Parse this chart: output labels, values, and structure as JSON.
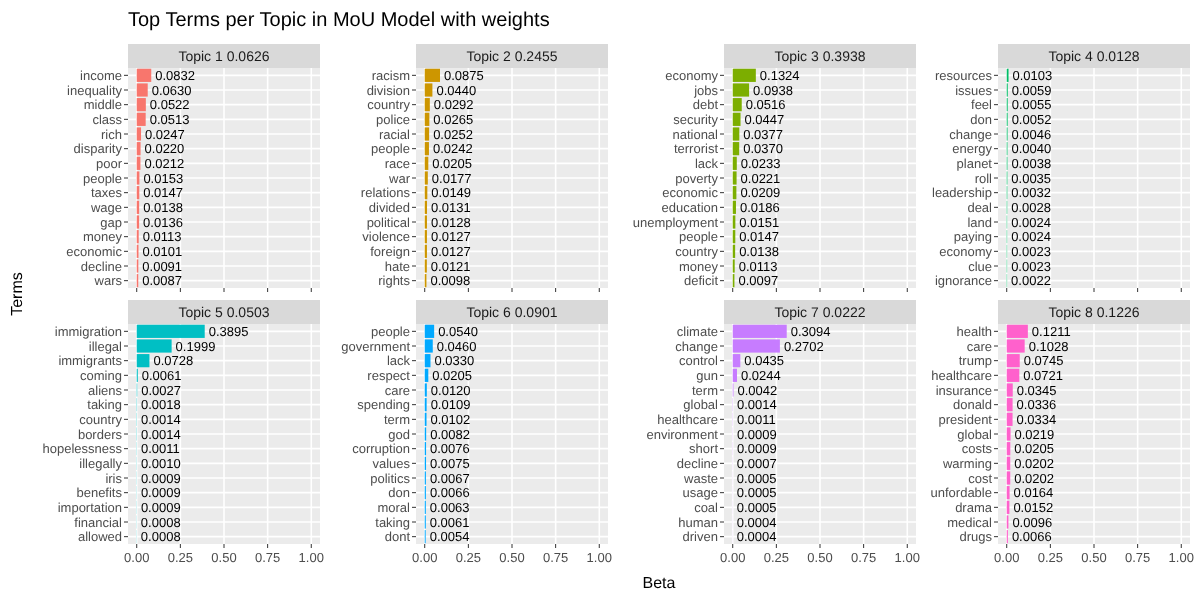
{
  "chart_data": [
    {
      "type": "bar",
      "orientation": "horizontal",
      "title": "Topic 1 0.0626",
      "annotations": [
        "Top Terms per Topic in MoU Model with weights"
      ],
      "ylabel": "Terms",
      "color": "#f8766d",
      "grid": true,
      "tick_labels": "y",
      "xlim": [
        -0.05,
        1.05
      ],
      "xticks": [
        {
          "value": 0,
          "label": null
        },
        {
          "value": 0.25,
          "label": null
        },
        {
          "value": 0.5,
          "label": null
        },
        {
          "value": 0.75,
          "label": null
        },
        {
          "value": 1,
          "label": null
        }
      ],
      "categories": [
        "income",
        "inequality",
        "middle",
        "class",
        "rich",
        "disparity",
        "poor",
        "people",
        "taxes",
        "wage",
        "gap",
        "money",
        "economic",
        "decline",
        "wars"
      ],
      "values": [
        0.0832,
        0.063,
        0.0522,
        0.0513,
        0.0247,
        0.022,
        0.0212,
        0.0153,
        0.0147,
        0.0138,
        0.0136,
        0.0113,
        0.0101,
        0.0091,
        0.0087
      ],
      "value_labels": [
        "0.0832",
        "0.0630",
        "0.0522",
        "0.0513",
        "0.0247",
        "0.0220",
        "0.0212",
        "0.0153",
        "0.0147",
        "0.0138",
        "0.0136",
        "0.0113",
        "0.0101",
        "0.0091",
        "0.0087"
      ]
    },
    {
      "type": "bar",
      "orientation": "horizontal",
      "title": "Topic 2 0.2455",
      "color": "#cd9600",
      "grid": true,
      "tick_labels": "y",
      "xlim": [
        -0.05,
        1.05
      ],
      "xticks": [
        {
          "value": 0,
          "label": null
        },
        {
          "value": 0.25,
          "label": null
        },
        {
          "value": 0.5,
          "label": null
        },
        {
          "value": 0.75,
          "label": null
        },
        {
          "value": 1,
          "label": null
        }
      ],
      "categories": [
        "racism",
        "division",
        "country",
        "police",
        "racial",
        "people",
        "race",
        "war",
        "relations",
        "divided",
        "political",
        "violence",
        "foreign",
        "hate",
        "rights"
      ],
      "values": [
        0.0875,
        0.044,
        0.0292,
        0.0265,
        0.0252,
        0.0242,
        0.0205,
        0.0177,
        0.0149,
        0.0131,
        0.0128,
        0.0127,
        0.0127,
        0.0121,
        0.0098
      ],
      "value_labels": [
        "0.0875",
        "0.0440",
        "0.0292",
        "0.0265",
        "0.0252",
        "0.0242",
        "0.0205",
        "0.0177",
        "0.0149",
        "0.0131",
        "0.0128",
        "0.0127",
        "0.0127",
        "0.0121",
        "0.0098"
      ]
    },
    {
      "type": "bar",
      "orientation": "horizontal",
      "title": "Topic 3 0.3938",
      "color": "#7cae00",
      "grid": true,
      "tick_labels": "y",
      "xlim": [
        -0.05,
        1.05
      ],
      "xticks": [
        {
          "value": 0,
          "label": null
        },
        {
          "value": 0.25,
          "label": null
        },
        {
          "value": 0.5,
          "label": null
        },
        {
          "value": 0.75,
          "label": null
        },
        {
          "value": 1,
          "label": null
        }
      ],
      "categories": [
        "economy",
        "jobs",
        "debt",
        "security",
        "national",
        "terrorist",
        "lack",
        "poverty",
        "economic",
        "education",
        "unemployment",
        "people",
        "country",
        "money",
        "deficit"
      ],
      "values": [
        0.1324,
        0.0938,
        0.0516,
        0.0447,
        0.0377,
        0.037,
        0.0233,
        0.0221,
        0.0209,
        0.0186,
        0.0151,
        0.0147,
        0.0138,
        0.0113,
        0.0097
      ],
      "value_labels": [
        "0.1324",
        "0.0938",
        "0.0516",
        "0.0447",
        "0.0377",
        "0.0370",
        "0.0233",
        "0.0221",
        "0.0209",
        "0.0186",
        "0.0151",
        "0.0147",
        "0.0138",
        "0.0113",
        "0.0097"
      ]
    },
    {
      "type": "bar",
      "orientation": "horizontal",
      "title": "Topic 4 0.0128",
      "color": "#00be67",
      "grid": true,
      "tick_labels": "y",
      "xlim": [
        -0.05,
        1.05
      ],
      "xticks": [
        {
          "value": 0,
          "label": null
        },
        {
          "value": 0.25,
          "label": null
        },
        {
          "value": 0.5,
          "label": null
        },
        {
          "value": 0.75,
          "label": null
        },
        {
          "value": 1,
          "label": null
        }
      ],
      "categories": [
        "resources",
        "issues",
        "feel",
        "don",
        "change",
        "energy",
        "planet",
        "roll",
        "leadership",
        "deal",
        "land",
        "paying",
        "economy",
        "clue",
        "ignorance"
      ],
      "values": [
        0.0103,
        0.0059,
        0.0055,
        0.0052,
        0.0046,
        0.004,
        0.0038,
        0.0035,
        0.0032,
        0.0028,
        0.0024,
        0.0024,
        0.0023,
        0.0023,
        0.0022
      ],
      "value_labels": [
        "0.0103",
        "0.0059",
        "0.0055",
        "0.0052",
        "0.0046",
        "0.0040",
        "0.0038",
        "0.0035",
        "0.0032",
        "0.0028",
        "0.0024",
        "0.0024",
        "0.0023",
        "0.0023",
        "0.0022"
      ]
    },
    {
      "type": "bar",
      "orientation": "horizontal",
      "title": "Topic 5 0.0503",
      "color": "#00bfc4",
      "grid": true,
      "xlim": [
        -0.05,
        1.05
      ],
      "xticks": [
        {
          "value": 0,
          "label": "0.00"
        },
        {
          "value": 0.25,
          "label": "0.25"
        },
        {
          "value": 0.5,
          "label": "0.50"
        },
        {
          "value": 0.75,
          "label": "0.75"
        },
        {
          "value": 1,
          "label": "1.00"
        }
      ],
      "categories": [
        "immigration",
        "illegal",
        "immigrants",
        "coming",
        "aliens",
        "taking",
        "country",
        "borders",
        "hopelessness",
        "illegally",
        "iris",
        "benefits",
        "importation",
        "financial",
        "allowed"
      ],
      "values": [
        0.3895,
        0.1999,
        0.0728,
        0.0061,
        0.0027,
        0.0018,
        0.0014,
        0.0014,
        0.0011,
        0.001,
        0.0009,
        0.0009,
        0.0009,
        0.0008,
        0.0008
      ],
      "value_labels": [
        "0.3895",
        "0.1999",
        "0.0728",
        "0.0061",
        "0.0027",
        "0.0018",
        "0.0014",
        "0.0014",
        "0.0011",
        "0.0010",
        "0.0009",
        "0.0009",
        "0.0009",
        "0.0008",
        "0.0008"
      ]
    },
    {
      "type": "bar",
      "orientation": "horizontal",
      "title": "Topic 6 0.0901",
      "color": "#00a9ff",
      "grid": true,
      "xlim": [
        -0.05,
        1.05
      ],
      "xticks": [
        {
          "value": 0,
          "label": "0.00"
        },
        {
          "value": 0.25,
          "label": "0.25"
        },
        {
          "value": 0.5,
          "label": "0.50"
        },
        {
          "value": 0.75,
          "label": "0.75"
        },
        {
          "value": 1,
          "label": "1.00"
        }
      ],
      "categories": [
        "people",
        "government",
        "lack",
        "respect",
        "care",
        "spending",
        "term",
        "god",
        "corruption",
        "values",
        "politics",
        "don",
        "moral",
        "taking",
        "dont"
      ],
      "values": [
        0.054,
        0.046,
        0.033,
        0.0205,
        0.012,
        0.0109,
        0.0102,
        0.0082,
        0.0076,
        0.0075,
        0.0067,
        0.0066,
        0.0063,
        0.0061,
        0.0054
      ],
      "value_labels": [
        "0.0540",
        "0.0460",
        "0.0330",
        "0.0205",
        "0.0120",
        "0.0109",
        "0.0102",
        "0.0082",
        "0.0076",
        "0.0075",
        "0.0067",
        "0.0066",
        "0.0063",
        "0.0061",
        "0.0054"
      ]
    },
    {
      "type": "bar",
      "orientation": "horizontal",
      "title": "Topic 7 0.0222",
      "xlabel": "Beta",
      "color": "#c77cff",
      "grid": true,
      "xlim": [
        -0.05,
        1.05
      ],
      "xticks": [
        {
          "value": 0,
          "label": "0.00"
        },
        {
          "value": 0.25,
          "label": "0.25"
        },
        {
          "value": 0.5,
          "label": "0.50"
        },
        {
          "value": 0.75,
          "label": "0.75"
        },
        {
          "value": 1,
          "label": "1.00"
        }
      ],
      "categories": [
        "climate",
        "change",
        "control",
        "gun",
        "term",
        "global",
        "healthcare",
        "environment",
        "short",
        "decline",
        "waste",
        "usage",
        "coal",
        "human",
        "driven"
      ],
      "values": [
        0.3094,
        0.2702,
        0.0435,
        0.0244,
        0.0042,
        0.0014,
        0.0011,
        0.0009,
        0.0009,
        0.0007,
        0.0005,
        0.0005,
        0.0005,
        0.0004,
        0.0004
      ],
      "value_labels": [
        "0.3094",
        "0.2702",
        "0.0435",
        "0.0244",
        "0.0042",
        "0.0014",
        "0.0011",
        "0.0009",
        "0.0009",
        "0.0007",
        "0.0005",
        "0.0005",
        "0.0005",
        "0.0004",
        "0.0004"
      ]
    },
    {
      "type": "bar",
      "orientation": "horizontal",
      "title": "Topic 8 0.1226",
      "color": "#ff61cc",
      "grid": true,
      "xlim": [
        -0.05,
        1.05
      ],
      "xticks": [
        {
          "value": 0,
          "label": "0.00"
        },
        {
          "value": 0.25,
          "label": "0.25"
        },
        {
          "value": 0.5,
          "label": "0.50"
        },
        {
          "value": 0.75,
          "label": "0.75"
        },
        {
          "value": 1,
          "label": "1.00"
        }
      ],
      "categories": [
        "health",
        "care",
        "trump",
        "healthcare",
        "insurance",
        "donald",
        "president",
        "global",
        "costs",
        "warming",
        "cost",
        "unfordable",
        "drama",
        "medical",
        "drugs"
      ],
      "values": [
        0.1211,
        0.1028,
        0.0745,
        0.0721,
        0.0345,
        0.0336,
        0.0334,
        0.0219,
        0.0205,
        0.0202,
        0.0202,
        0.0164,
        0.0152,
        0.0096,
        0.0066
      ],
      "value_labels": [
        "0.1211",
        "0.1028",
        "0.0745",
        "0.0721",
        "0.0345",
        "0.0336",
        "0.0334",
        "0.0219",
        "0.0205",
        "0.0202",
        "0.0202",
        "0.0164",
        "0.0152",
        "0.0096",
        "0.0066"
      ]
    }
  ]
}
